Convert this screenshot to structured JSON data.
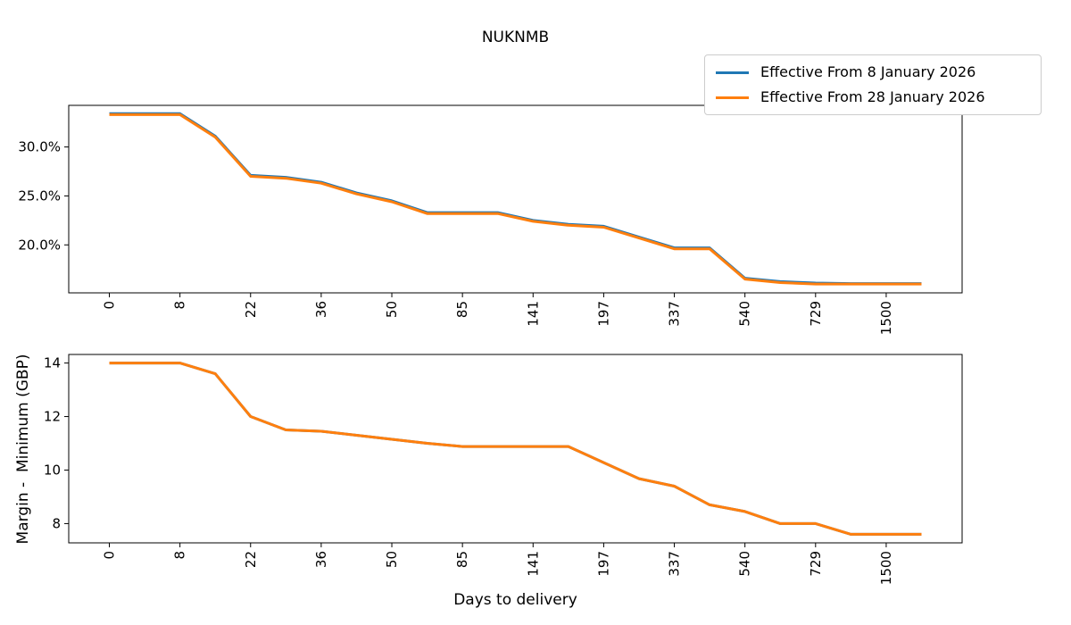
{
  "title": "NUKNMB",
  "xlabel": "Days to delivery",
  "legend": {
    "entries": [
      {
        "label": "Effective From 8 January 2026",
        "color": "#1f77b4"
      },
      {
        "label": "Effective From 28 January 2026",
        "color": "#ff7f0e"
      }
    ]
  },
  "chart_data": [
    {
      "type": "line",
      "title": "NUKNMB",
      "ylabel": "",
      "legend_position": "upper right, outside top of axes",
      "grid": false,
      "x_tick_labels": [
        "0",
        "8",
        "22",
        "36",
        "50",
        "85",
        "141",
        "197",
        "337",
        "540",
        "729",
        "1500"
      ],
      "x_tick_indices": [
        0,
        2,
        4,
        6,
        8,
        10,
        12,
        14,
        16,
        18,
        20,
        22
      ],
      "xlim": [
        -1.15,
        24.15
      ],
      "ylim": [
        15.1,
        34.25
      ],
      "y_ticks": [
        30,
        25,
        20
      ],
      "y_tick_labels": [
        "30.0%",
        "25.0%",
        "20.0%"
      ],
      "series": [
        {
          "name": "Effective From 8 January 2026",
          "color": "#1f77b4",
          "values": [
            33.4,
            33.4,
            33.4,
            31.1,
            27.1,
            26.9,
            26.4,
            25.3,
            24.5,
            23.3,
            23.3,
            23.3,
            22.5,
            22.1,
            21.9,
            20.8,
            19.7,
            19.7,
            16.6,
            16.25,
            16.1,
            16.05,
            16.05,
            16.05
          ]
        },
        {
          "name": "Effective From 28 January 2026",
          "color": "#ff7f0e",
          "values": [
            33.3,
            33.3,
            33.3,
            31.0,
            27.0,
            26.8,
            26.3,
            25.2,
            24.4,
            23.2,
            23.2,
            23.2,
            22.4,
            22.0,
            21.8,
            20.7,
            19.6,
            19.6,
            16.5,
            16.15,
            16.0,
            16.0,
            16.0,
            16.0
          ]
        }
      ]
    },
    {
      "type": "line",
      "title": "",
      "ylabel": "Margin -  Minimum (GBP)",
      "grid": false,
      "x_tick_labels": [
        "0",
        "8",
        "22",
        "36",
        "50",
        "85",
        "141",
        "197",
        "337",
        "540",
        "729",
        "1500"
      ],
      "x_tick_indices": [
        0,
        2,
        4,
        6,
        8,
        10,
        12,
        14,
        16,
        18,
        20,
        22
      ],
      "xlim": [
        -1.15,
        24.15
      ],
      "ylim": [
        7.28,
        14.32
      ],
      "y_ticks": [
        14,
        12,
        10,
        8
      ],
      "y_tick_labels": [
        "14",
        "12",
        "10",
        "8"
      ],
      "series": [
        {
          "name": "Effective From 8 January 2026",
          "color": "#1f77b4",
          "values": [
            14.0,
            14.0,
            14.0,
            13.6,
            12.0,
            11.5,
            11.45,
            11.3,
            11.15,
            11.0,
            10.88,
            10.88,
            10.88,
            10.88,
            10.28,
            9.68,
            9.4,
            8.7,
            8.45,
            8.0,
            8.0,
            7.6,
            7.6,
            7.6
          ]
        },
        {
          "name": "Effective From 28 January 2026",
          "color": "#ff7f0e",
          "values": [
            14.0,
            14.0,
            14.0,
            13.6,
            12.0,
            11.5,
            11.45,
            11.3,
            11.15,
            11.0,
            10.88,
            10.88,
            10.88,
            10.88,
            10.28,
            9.68,
            9.4,
            8.7,
            8.45,
            8.0,
            8.0,
            7.6,
            7.6,
            7.6
          ]
        }
      ]
    }
  ]
}
